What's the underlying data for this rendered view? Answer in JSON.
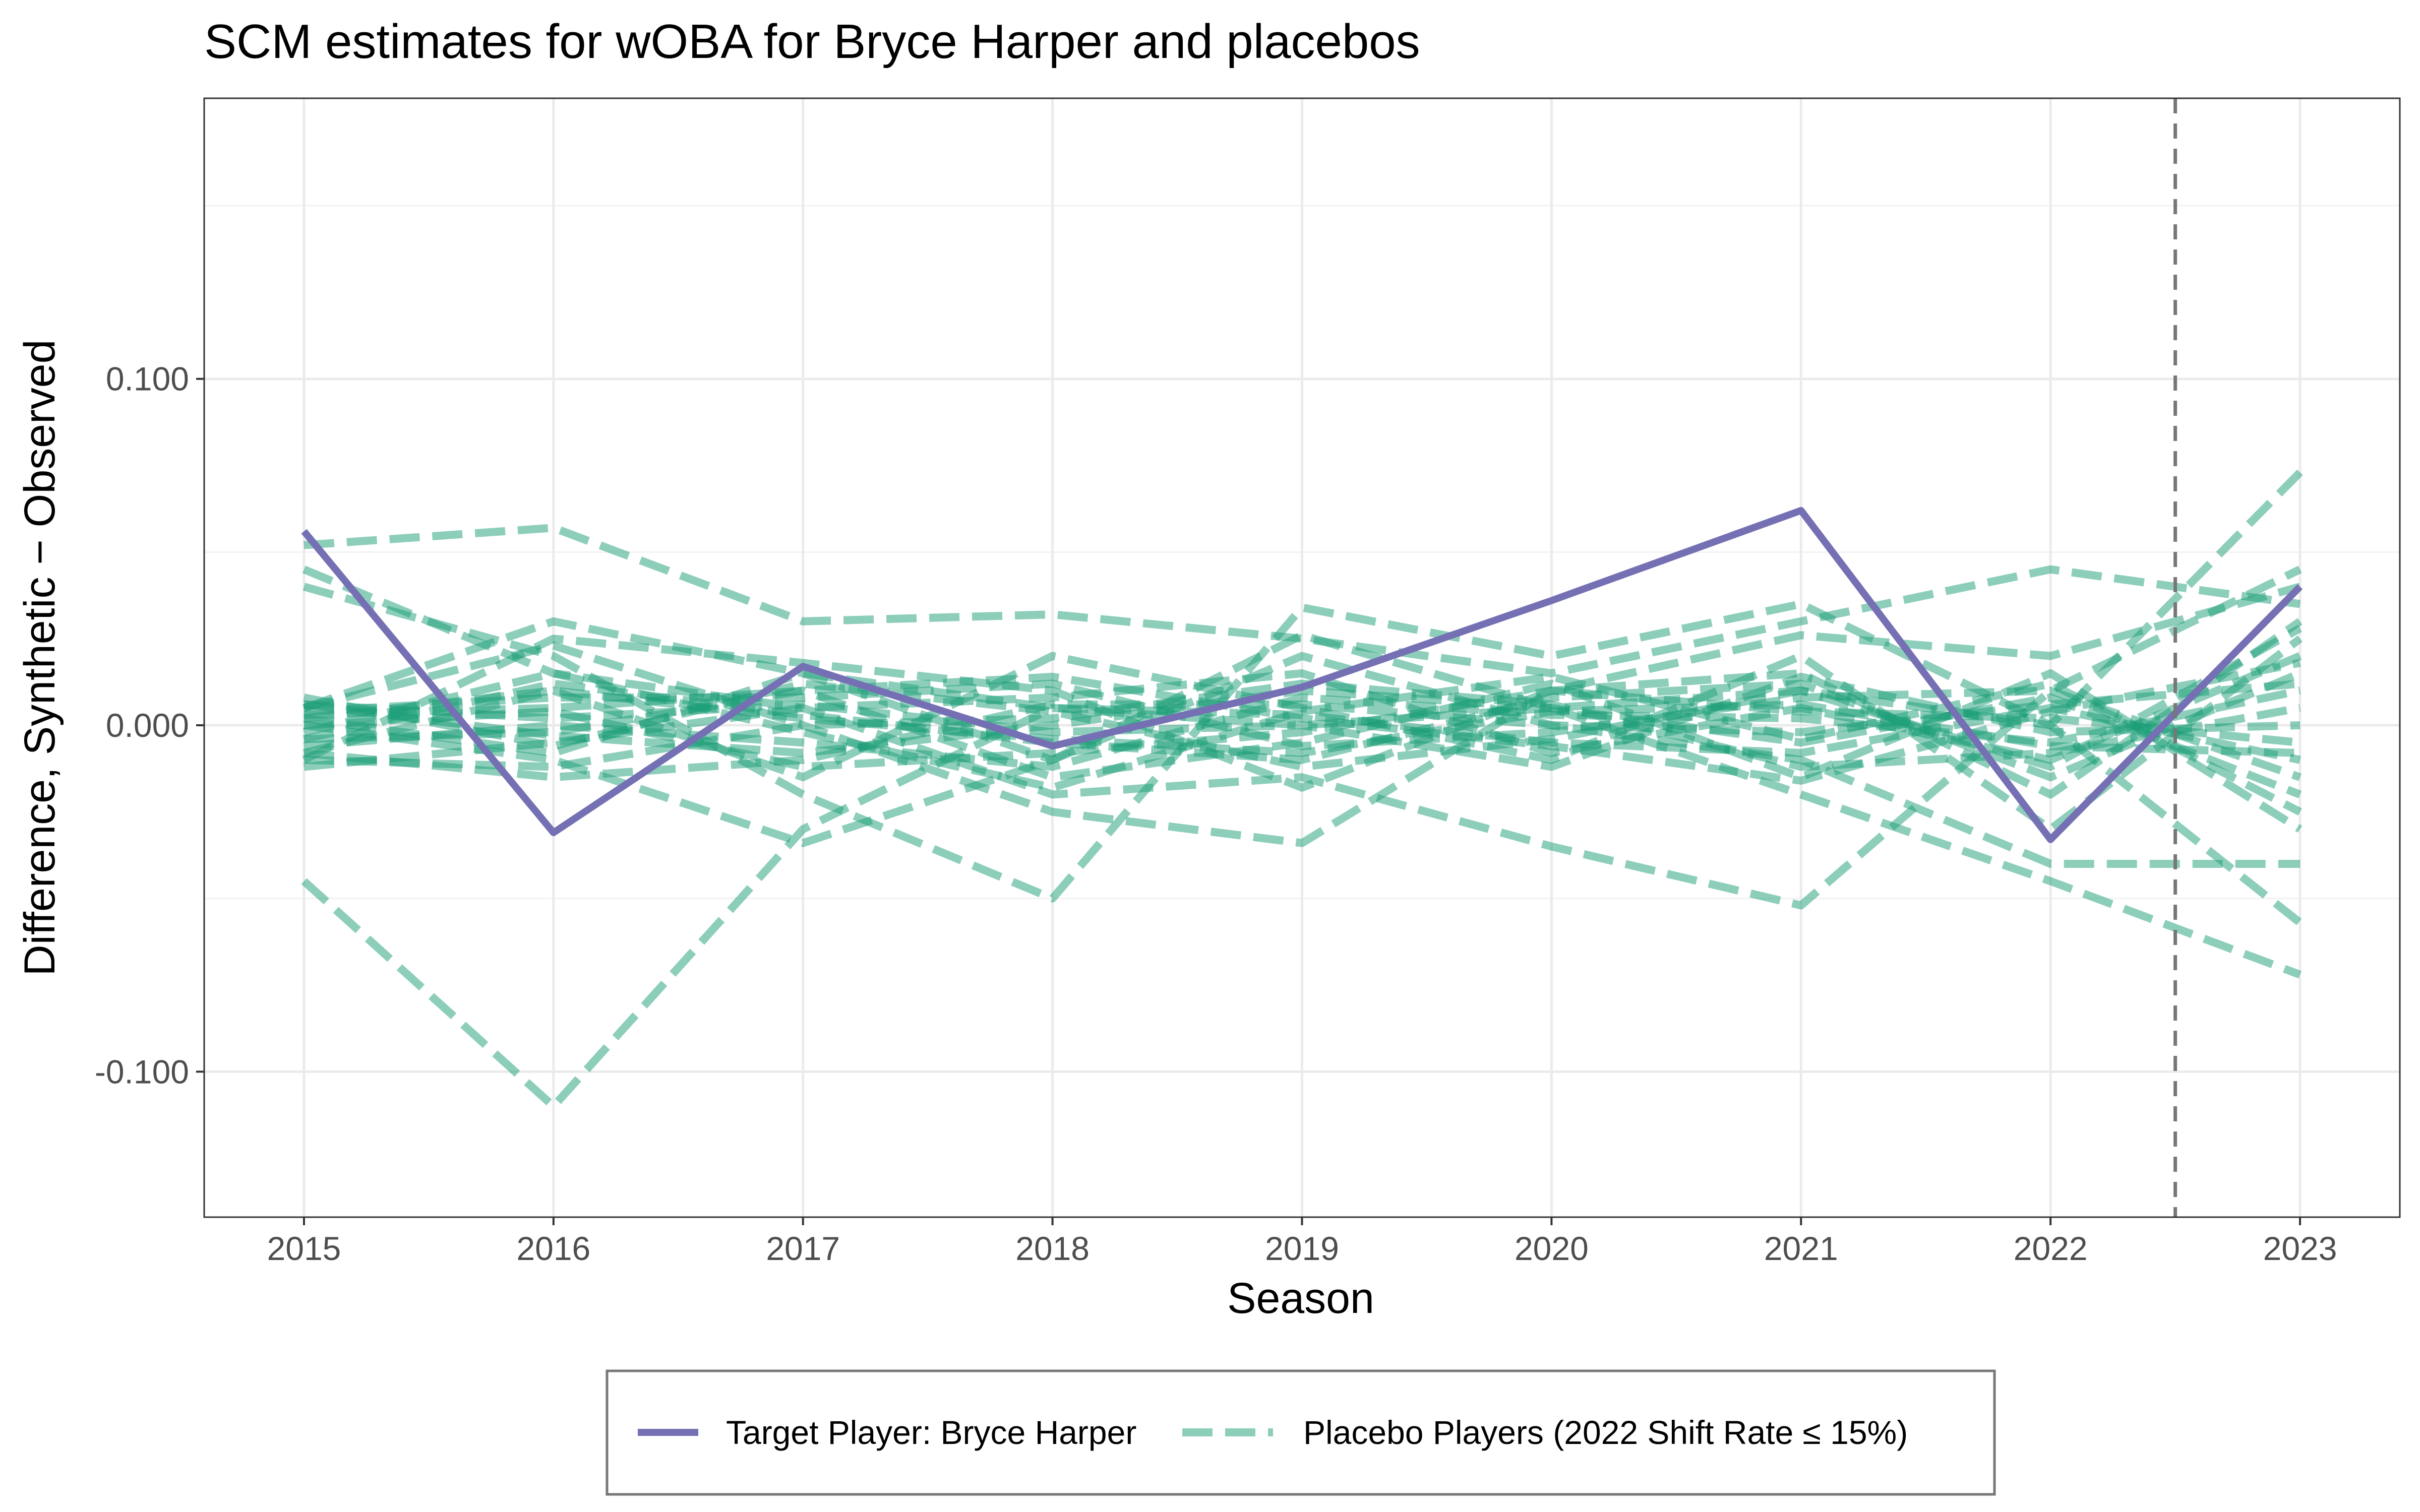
{
  "chart_data": {
    "type": "line",
    "title": "SCM estimates for wOBA for Bryce Harper and placebos",
    "xlabel": "Season",
    "ylabel": "Difference, Synthetic − Observed",
    "x": [
      2015,
      2016,
      2017,
      2018,
      2019,
      2020,
      2021,
      2022,
      2023
    ],
    "x_ticks": [
      "2015",
      "2016",
      "2017",
      "2018",
      "2019",
      "2020",
      "2021",
      "2022",
      "2023"
    ],
    "y_ticks": [
      {
        "value": 0.1,
        "label": "0.100"
      },
      {
        "value": 0.0,
        "label": "0.000"
      },
      {
        "value": -0.1,
        "label": "-0.100"
      }
    ],
    "xlim": [
      2014.6,
      2023.4
    ],
    "ylim": [
      -0.142,
      0.181
    ],
    "grid": true,
    "treatment_line": {
      "x": 2022.5,
      "style": "dashed",
      "color": "#777777"
    },
    "legend_position": "bottom",
    "colors": {
      "target": "#7570b3",
      "placebo": "#1b9e77"
    },
    "target": {
      "name": "Target Player: Bryce Harper",
      "values": [
        0.056,
        -0.031,
        0.017,
        -0.006,
        0.011,
        0.036,
        0.062,
        -0.033,
        0.04
      ]
    },
    "placebo_legend": "Placebo Players (2022 Shift Rate ≤ 15%)",
    "placebos": [
      [
        0.052,
        0.057,
        0.03,
        0.032,
        0.025,
        0.015,
        0.03,
        0.045,
        0.035
      ],
      [
        -0.045,
        -0.11,
        -0.03,
        0.005,
        0.0,
        0.005,
        0.01,
        0.0,
        0.073
      ],
      [
        0.045,
        0.015,
        0.005,
        -0.02,
        -0.015,
        -0.035,
        -0.052,
        0.01,
        0.045
      ],
      [
        0.04,
        0.02,
        -0.02,
        -0.05,
        0.034,
        0.02,
        0.035,
        0.0,
        -0.057
      ],
      [
        0.005,
        0.03,
        0.015,
        -0.01,
        0.026,
        0.005,
        -0.02,
        -0.045,
        -0.072
      ],
      [
        -0.01,
        0.025,
        0.018,
        0.01,
        -0.018,
        0.01,
        0.026,
        0.02,
        0.04
      ],
      [
        0.0,
        -0.01,
        -0.034,
        -0.01,
        0.02,
        0.0,
        -0.01,
        -0.04,
        -0.04
      ],
      [
        0.005,
        0.023,
        0.0,
        -0.025,
        -0.034,
        0.01,
        0.015,
        -0.02,
        0.03
      ],
      [
        -0.008,
        0.01,
        -0.015,
        0.02,
        0.005,
        -0.01,
        0.02,
        -0.03,
        0.025
      ],
      [
        0.003,
        0.005,
        0.01,
        -0.015,
        -0.005,
        0.012,
        -0.015,
        0.015,
        -0.03
      ],
      [
        -0.012,
        -0.005,
        0.005,
        0.008,
        0.015,
        -0.008,
        0.005,
        -0.01,
        0.02
      ],
      [
        0.006,
        -0.003,
        -0.008,
        0.0,
        0.01,
        0.005,
        -0.005,
        0.008,
        -0.02
      ],
      [
        -0.004,
        0.012,
        0.003,
        -0.005,
        -0.01,
        0.008,
        0.012,
        -0.015,
        0.015
      ],
      [
        0.002,
        -0.008,
        0.015,
        0.005,
        0.003,
        -0.005,
        -0.008,
        0.005,
        -0.01
      ],
      [
        -0.006,
        0.0,
        -0.005,
        -0.012,
        0.008,
        0.003,
        0.002,
        -0.005,
        0.01
      ],
      [
        0.004,
        0.008,
        0.008,
        0.012,
        -0.006,
        -0.002,
        0.008,
        0.01,
        -0.015
      ],
      [
        -0.01,
        -0.012,
        0.0,
        0.002,
        0.012,
        0.006,
        -0.012,
        -0.008,
        0.005
      ],
      [
        0.0,
        0.004,
        -0.012,
        -0.008,
        -0.002,
        0.01,
        0.004,
        0.002,
        -0.005
      ],
      [
        0.008,
        -0.006,
        0.012,
        0.004,
        -0.012,
        -0.004,
        0.01,
        -0.012,
        0.028
      ],
      [
        -0.002,
        0.015,
        -0.002,
        -0.018,
        0.004,
        0.014,
        -0.004,
        0.012,
        -0.025
      ],
      [
        0.006,
        0.002,
        0.006,
        -0.002,
        0.0,
        -0.012,
        0.014,
        -0.002,
        0.0
      ],
      [
        -0.008,
        -0.015,
        -0.01,
        0.006,
        0.006,
        0.0,
        -0.002,
        0.006,
        0.012
      ],
      [
        0.002,
        0.01,
        0.002,
        -0.004,
        -0.008,
        0.004,
        0.006,
        -0.006,
        -0.008
      ],
      [
        -0.004,
        -0.002,
        0.01,
        0.014,
        0.002,
        -0.006,
        -0.016,
        0.004,
        0.018
      ]
    ]
  }
}
